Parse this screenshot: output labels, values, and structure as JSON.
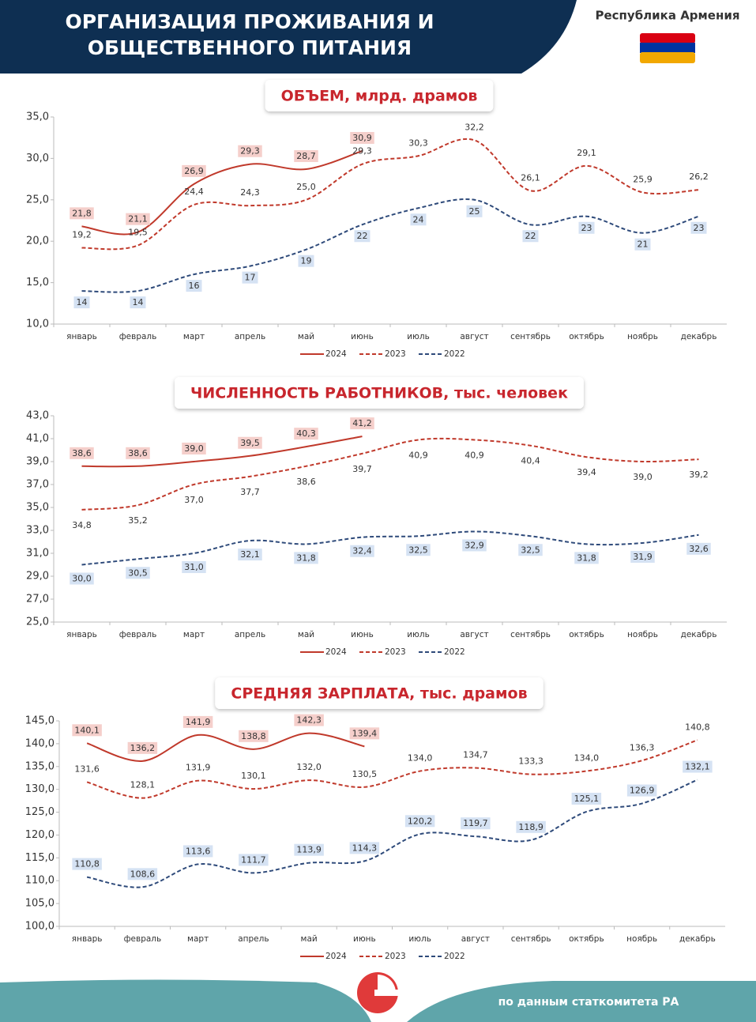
{
  "header": {
    "title": [
      "ОРГАНИЗАЦИЯ ПРОЖИВАНИЯ И",
      "ОБЩЕСТВЕННОГО ПИТАНИЯ"
    ],
    "country": "Республика Армения"
  },
  "footer": {
    "source": "по данным статкомитета РА"
  },
  "chart_data": [
    {
      "type": "line",
      "title": "ОБЪЕМ, млрд. драмов",
      "categories": [
        "январь",
        "февраль",
        "март",
        "апрель",
        "май",
        "июнь",
        "июль",
        "август",
        "сентябрь",
        "октябрь",
        "ноябрь",
        "декабрь"
      ],
      "ylim": [
        10,
        35
      ],
      "yticks": [
        {
          "value": 10,
          "label": "10,0"
        },
        {
          "value": 15,
          "label": "15,0"
        },
        {
          "value": 20,
          "label": "20,0"
        },
        {
          "value": 25,
          "label": "25,0"
        },
        {
          "value": 30,
          "label": "30,0"
        },
        {
          "value": 35,
          "label": "35,0"
        }
      ],
      "series": [
        {
          "name": "2024",
          "color": "#c0392b",
          "style": "solid",
          "values": [
            21.8,
            21.1,
            26.9,
            29.3,
            28.7,
            30.9,
            null,
            null,
            null,
            null,
            null,
            null
          ],
          "value_labels": [
            "21,8",
            "21,1",
            "26,9",
            "29,3",
            "28,7",
            "30,9",
            null,
            null,
            null,
            null,
            null,
            null
          ]
        },
        {
          "name": "2023",
          "color": "#c0392b",
          "style": "dashed",
          "values": [
            19.2,
            19.5,
            24.4,
            24.3,
            25.0,
            29.3,
            30.3,
            32.2,
            26.1,
            29.1,
            25.9,
            26.2
          ],
          "value_labels": [
            "19,2",
            "19,5",
            "24,4",
            "24,3",
            "25,0",
            "29,3",
            "30,3",
            "32,2",
            "26,1",
            "29,1",
            "25,9",
            "26,2"
          ]
        },
        {
          "name": "2022",
          "color": "#2e4a7a",
          "style": "dashed",
          "values": [
            14,
            14,
            16,
            17,
            19,
            22,
            24,
            25,
            22,
            23,
            21,
            23
          ]
        }
      ]
    },
    {
      "type": "line",
      "title": "ЧИСЛЕННОСТЬ РАБОТНИКОВ, тыс. человек",
      "categories": [
        "январь",
        "февраль",
        "март",
        "апрель",
        "май",
        "июнь",
        "июль",
        "август",
        "сентябрь",
        "октябрь",
        "ноябрь",
        "декабрь"
      ],
      "ylim": [
        25,
        43
      ],
      "yticks": [
        {
          "value": 25,
          "label": "25,0"
        },
        {
          "value": 27,
          "label": "27,0"
        },
        {
          "value": 29,
          "label": "29,0"
        },
        {
          "value": 31,
          "label": "31,0"
        },
        {
          "value": 33,
          "label": "33,0"
        },
        {
          "value": 35,
          "label": "35,0"
        },
        {
          "value": 37,
          "label": "37,0"
        },
        {
          "value": 39,
          "label": "39,0"
        },
        {
          "value": 41,
          "label": "41,0"
        },
        {
          "value": 43,
          "label": "43,0"
        }
      ],
      "series": [
        {
          "name": "2024",
          "color": "#c0392b",
          "style": "solid",
          "values": [
            38.6,
            38.6,
            39.0,
            39.5,
            40.3,
            41.2,
            null,
            null,
            null,
            null,
            null,
            null
          ],
          "value_labels": [
            "38,6",
            "38,6",
            "39,0",
            "39,5",
            "40,3",
            "41,2",
            null,
            null,
            null,
            null,
            null,
            null
          ]
        },
        {
          "name": "2023",
          "color": "#c0392b",
          "style": "dashed",
          "values": [
            34.8,
            35.2,
            37.0,
            37.7,
            38.6,
            39.7,
            40.9,
            40.9,
            40.4,
            39.4,
            39.0,
            39.2
          ],
          "value_labels": [
            "34,8",
            "35,2",
            "37,0",
            "37,7",
            "38,6",
            "39,7",
            "40,9",
            "40,9",
            "40,4",
            "39,4",
            "39,0",
            "39,2"
          ]
        },
        {
          "name": "2022",
          "color": "#2e4a7a",
          "style": "dashed",
          "values": [
            30.0,
            30.5,
            31.0,
            32.1,
            31.8,
            32.4,
            32.5,
            32.9,
            32.5,
            31.8,
            31.9,
            32.6
          ],
          "value_labels": [
            "30,0",
            "30,5",
            "31,0",
            "32,1",
            "31,8",
            "32,4",
            "32,5",
            "32,9",
            "32,5",
            "31,8",
            "31,9",
            "32,6"
          ]
        }
      ]
    },
    {
      "type": "line",
      "title": "СРЕДНЯЯ ЗАРПЛАТА, тыс. драмов",
      "categories": [
        "январь",
        "февраль",
        "март",
        "апрель",
        "май",
        "июнь",
        "июль",
        "август",
        "сентябрь",
        "октябрь",
        "ноябрь",
        "декабрь"
      ],
      "ylim": [
        100,
        145
      ],
      "yticks": [
        {
          "value": 100,
          "label": "100,0"
        },
        {
          "value": 105,
          "label": "105,0"
        },
        {
          "value": 110,
          "label": "110,0"
        },
        {
          "value": 115,
          "label": "115,0"
        },
        {
          "value": 120,
          "label": "120,0"
        },
        {
          "value": 125,
          "label": "125,0"
        },
        {
          "value": 130,
          "label": "130,0"
        },
        {
          "value": 135,
          "label": "135,0"
        },
        {
          "value": 140,
          "label": "140,0"
        },
        {
          "value": 145,
          "label": "145,0"
        }
      ],
      "series": [
        {
          "name": "2024",
          "color": "#c0392b",
          "style": "solid",
          "values": [
            140.1,
            136.2,
            141.9,
            138.8,
            142.3,
            139.4,
            null,
            null,
            null,
            null,
            null,
            null
          ],
          "value_labels": [
            "140,1",
            "136,2",
            "141,9",
            "138,8",
            "142,3",
            "139,4",
            null,
            null,
            null,
            null,
            null,
            null
          ]
        },
        {
          "name": "2023",
          "color": "#c0392b",
          "style": "dashed",
          "values": [
            131.6,
            128.1,
            131.9,
            130.1,
            132.0,
            130.5,
            134.0,
            134.7,
            133.3,
            134.0,
            136.3,
            140.8
          ],
          "value_labels": [
            "131,6",
            "128,1",
            "131,9",
            "130,1",
            "132,0",
            "130,5",
            "134,0",
            "134,7",
            "133,3",
            "134,0",
            "136,3",
            "140,8"
          ]
        },
        {
          "name": "2022",
          "color": "#2e4a7a",
          "style": "dashed",
          "values": [
            110.8,
            108.6,
            113.6,
            111.7,
            113.9,
            114.3,
            120.2,
            119.7,
            118.9,
            125.1,
            126.9,
            132.1
          ],
          "value_labels": [
            "110,8",
            "108,6",
            "113,6",
            "111,7",
            "113,9",
            "114,3",
            "120,2",
            "119,7",
            "118,9",
            "125,1",
            "126,9",
            "132,1"
          ]
        }
      ]
    }
  ]
}
